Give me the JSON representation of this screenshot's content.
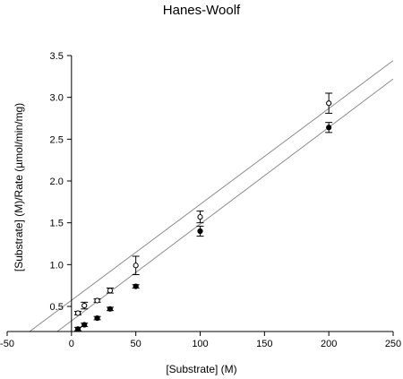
{
  "chart_data": {
    "type": "scatter",
    "title": "Hanes-Woolf",
    "xlabel": "[Substrate] (M)",
    "ylabel": "[Substrate] (M)/Rate (µmol/min/mg)",
    "xlim": [
      -50,
      250
    ],
    "ylim": [
      0.2,
      3.5
    ],
    "x_axis_crosses_y_at": 0.2,
    "y_axis_at_x": 0,
    "x_ticks": [
      -50,
      0,
      50,
      100,
      150,
      200,
      250
    ],
    "x_tick_labels": [
      "-50",
      "0",
      "50",
      "100",
      "150",
      "200",
      "250"
    ],
    "y_ticks": [
      0.5,
      1.0,
      1.5,
      2.0,
      2.5,
      3.0,
      3.5
    ],
    "y_tick_labels": [
      "0.5",
      "1.0",
      "1.5",
      "2.0",
      "2.5",
      "3.0",
      "3.5"
    ],
    "grid": false,
    "legend": "none",
    "series": [
      {
        "marker": "open-circle",
        "x": [
          5,
          10,
          20,
          30,
          50,
          100,
          200
        ],
        "y": [
          0.42,
          0.51,
          0.57,
          0.69,
          0.99,
          1.57,
          2.93
        ],
        "error": [
          0.02,
          0.04,
          0.02,
          0.03,
          0.11,
          0.07,
          0.12
        ],
        "fit": {
          "x": [
            -50,
            250
          ],
          "y": [
            0.0,
            3.44
          ]
        }
      },
      {
        "marker": "filled-circle",
        "x": [
          5,
          10,
          20,
          30,
          50,
          100,
          200
        ],
        "y": [
          0.23,
          0.28,
          0.36,
          0.47,
          0.74,
          1.4,
          2.64
        ],
        "error": [
          0.02,
          0.02,
          0.02,
          0.02,
          0.02,
          0.06,
          0.06
        ],
        "fit": {
          "x": [
            -50,
            250
          ],
          "y": [
            -0.25,
            3.22
          ]
        }
      }
    ],
    "colors": {
      "axis": "#000000",
      "fit_line": "#8c8c8c",
      "marker": "#000000"
    }
  }
}
